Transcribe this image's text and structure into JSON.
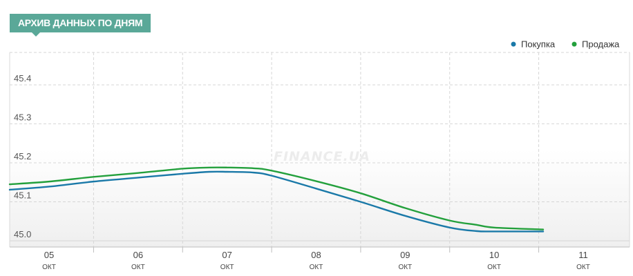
{
  "header": {
    "title": "АРХИВ ДАННЫХ ПО ДНЯМ"
  },
  "watermark": "FINANCE.UA",
  "colors": {
    "buy": "#1a79a8",
    "sell": "#23a03c",
    "badge": "#5aa898"
  },
  "chart_data": {
    "type": "line",
    "title": "",
    "xlabel": "",
    "ylabel": "",
    "legend_position": "top-right",
    "grid": true,
    "x_ticks": [
      {
        "day": "05",
        "month": "ОКТ"
      },
      {
        "day": "06",
        "month": "ОКТ"
      },
      {
        "day": "07",
        "month": "ОКТ"
      },
      {
        "day": "08",
        "month": "ОКТ"
      },
      {
        "day": "09",
        "month": "ОКТ"
      },
      {
        "day": "10",
        "month": "ОКТ"
      },
      {
        "day": "11",
        "month": "ОКТ"
      }
    ],
    "y_ticks": [
      "45.0",
      "45.1",
      "45.2",
      "45.3",
      "45.4"
    ],
    "ylim": [
      45.0,
      45.4
    ],
    "series": [
      {
        "name": "Покупка",
        "color": "#1a79a8",
        "points": [
          {
            "x": 4.5,
            "y": 45.131
          },
          {
            "x": 5.0,
            "y": 45.139
          },
          {
            "x": 5.5,
            "y": 45.152
          },
          {
            "x": 6.0,
            "y": 45.162
          },
          {
            "x": 6.5,
            "y": 45.172
          },
          {
            "x": 6.8,
            "y": 45.177
          },
          {
            "x": 7.0,
            "y": 45.177
          },
          {
            "x": 7.3,
            "y": 45.175
          },
          {
            "x": 7.5,
            "y": 45.167
          },
          {
            "x": 8.0,
            "y": 45.134
          },
          {
            "x": 8.5,
            "y": 45.1
          },
          {
            "x": 9.0,
            "y": 45.064
          },
          {
            "x": 9.5,
            "y": 45.034
          },
          {
            "x": 9.8,
            "y": 45.025
          },
          {
            "x": 10.0,
            "y": 45.024
          },
          {
            "x": 10.55,
            "y": 45.024
          }
        ]
      },
      {
        "name": "Продажа",
        "color": "#23a03c",
        "points": [
          {
            "x": 4.5,
            "y": 45.145
          },
          {
            "x": 5.0,
            "y": 45.152
          },
          {
            "x": 5.5,
            "y": 45.164
          },
          {
            "x": 6.0,
            "y": 45.174
          },
          {
            "x": 6.5,
            "y": 45.185
          },
          {
            "x": 6.8,
            "y": 45.188
          },
          {
            "x": 7.0,
            "y": 45.188
          },
          {
            "x": 7.3,
            "y": 45.186
          },
          {
            "x": 7.5,
            "y": 45.18
          },
          {
            "x": 8.0,
            "y": 45.153
          },
          {
            "x": 8.5,
            "y": 45.122
          },
          {
            "x": 9.0,
            "y": 45.084
          },
          {
            "x": 9.5,
            "y": 45.052
          },
          {
            "x": 9.8,
            "y": 45.041
          },
          {
            "x": 10.0,
            "y": 45.034
          },
          {
            "x": 10.55,
            "y": 45.029
          }
        ]
      }
    ]
  }
}
